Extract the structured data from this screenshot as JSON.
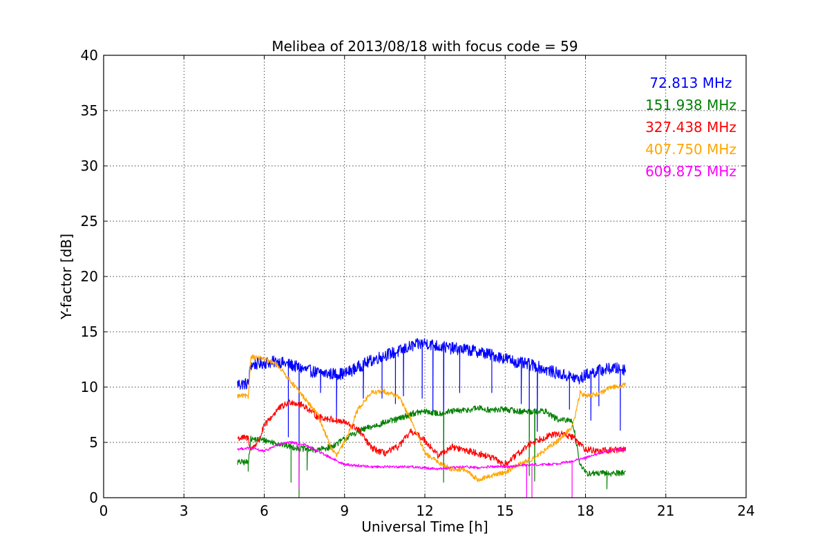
{
  "chart_data": {
    "type": "line",
    "title": "Melibea of 2013/08/18 with focus code = 59",
    "xlabel": "Universal Time [h]",
    "ylabel": "Y-factor [dB]",
    "xlim": [
      0,
      24
    ],
    "ylim": [
      0,
      40
    ],
    "xticks": [
      "0",
      "3",
      "6",
      "9",
      "12",
      "15",
      "18",
      "21",
      "24"
    ],
    "yticks": [
      "0",
      "5",
      "10",
      "15",
      "20",
      "25",
      "30",
      "35",
      "40"
    ],
    "grid": true,
    "legend_position": "top-right",
    "series": [
      {
        "name": "72.813 MHz",
        "color": "#0000ff",
        "x": [
          5.0,
          5.4,
          5.5,
          6.0,
          6.5,
          7.0,
          7.5,
          8.0,
          8.5,
          9.0,
          9.5,
          10.0,
          10.5,
          11.0,
          11.5,
          12.0,
          12.5,
          13.0,
          13.5,
          14.0,
          14.5,
          15.0,
          15.5,
          16.0,
          16.5,
          17.0,
          17.5,
          17.8,
          18.0,
          18.5,
          19.0,
          19.5
        ],
        "y": [
          10.3,
          10.3,
          12.0,
          12.2,
          12.3,
          12.0,
          11.6,
          11.3,
          11.2,
          11.2,
          11.8,
          12.4,
          12.9,
          13.2,
          13.7,
          14.0,
          13.7,
          13.5,
          13.4,
          13.2,
          12.9,
          12.6,
          12.2,
          12.0,
          11.6,
          11.2,
          10.9,
          10.7,
          11.1,
          11.5,
          11.7,
          11.6
        ],
        "dips": [
          [
            5.1,
            9.8
          ],
          [
            6.9,
            5.5
          ],
          [
            7.3,
            4.5
          ],
          [
            8.1,
            9.5
          ],
          [
            8.7,
            7.0
          ],
          [
            9.7,
            9.0
          ],
          [
            10.4,
            9.0
          ],
          [
            10.9,
            8.5
          ],
          [
            11.2,
            9.2
          ],
          [
            11.9,
            9.0
          ],
          [
            12.3,
            7.5
          ],
          [
            12.7,
            4.3
          ],
          [
            13.3,
            9.5
          ],
          [
            14.5,
            9.5
          ],
          [
            15.6,
            8.5
          ],
          [
            15.9,
            5.5
          ],
          [
            16.2,
            6.0
          ],
          [
            17.4,
            8.0
          ],
          [
            18.2,
            7.0
          ],
          [
            18.5,
            8.3
          ],
          [
            19.3,
            6.1
          ]
        ]
      },
      {
        "name": "151.938 MHz",
        "color": "#008000",
        "x": [
          5.0,
          5.4,
          5.5,
          6.0,
          6.5,
          7.0,
          7.5,
          8.0,
          8.5,
          9.0,
          9.5,
          10.0,
          10.5,
          11.0,
          11.5,
          12.0,
          12.5,
          13.0,
          13.5,
          14.0,
          14.5,
          15.0,
          15.5,
          16.0,
          16.5,
          17.0,
          17.5,
          17.6,
          17.8,
          18.0,
          18.5,
          19.0,
          19.5
        ],
        "y": [
          3.2,
          3.2,
          5.3,
          5.2,
          4.9,
          4.6,
          4.4,
          4.3,
          4.6,
          5.3,
          6.0,
          6.4,
          6.8,
          7.1,
          7.6,
          7.8,
          7.6,
          7.8,
          7.9,
          8.1,
          7.9,
          8.0,
          7.8,
          7.8,
          7.8,
          7.0,
          7.0,
          5.8,
          3.0,
          2.2,
          2.2,
          2.2,
          2.3
        ],
        "dips": [
          [
            5.4,
            2.4
          ],
          [
            7.0,
            1.4
          ],
          [
            7.3,
            0.0
          ],
          [
            7.6,
            2.5
          ],
          [
            12.7,
            1.4
          ],
          [
            15.9,
            2.0
          ],
          [
            16.1,
            1.5
          ],
          [
            18.8,
            0.8
          ]
        ]
      },
      {
        "name": "327.438 MHz",
        "color": "#ff0000",
        "x": [
          5.0,
          5.4,
          5.5,
          5.8,
          6.0,
          6.5,
          7.0,
          7.5,
          8.0,
          8.5,
          9.0,
          9.5,
          10.0,
          10.5,
          11.0,
          11.5,
          12.0,
          12.5,
          13.0,
          13.5,
          14.0,
          14.5,
          15.0,
          15.5,
          16.0,
          16.5,
          17.0,
          17.5,
          18.0,
          18.5,
          19.0,
          19.5
        ],
        "y": [
          5.4,
          5.4,
          4.3,
          5.2,
          6.5,
          8.0,
          8.7,
          8.3,
          7.3,
          7.1,
          6.8,
          6.2,
          4.5,
          4.0,
          4.6,
          6.0,
          5.2,
          3.8,
          4.6,
          4.3,
          4.0,
          3.6,
          3.0,
          4.0,
          5.0,
          5.5,
          5.8,
          5.5,
          4.4,
          4.2,
          4.3,
          4.4
        ],
        "dips": []
      },
      {
        "name": "407.750 MHz",
        "color": "#ffa500",
        "x": [
          5.0,
          5.3,
          5.4,
          5.5,
          6.0,
          6.5,
          7.0,
          7.5,
          8.0,
          8.5,
          8.7,
          9.0,
          9.5,
          10.0,
          10.5,
          11.0,
          11.5,
          12.0,
          12.5,
          13.0,
          13.5,
          14.0,
          14.5,
          15.0,
          15.5,
          16.0,
          16.5,
          17.0,
          17.5,
          17.6,
          17.8,
          18.0,
          18.5,
          19.0,
          19.5
        ],
        "y": [
          9.2,
          9.2,
          9.0,
          12.8,
          12.5,
          12.0,
          10.5,
          9.0,
          7.5,
          4.5,
          3.8,
          5.0,
          8.0,
          9.5,
          9.6,
          9.2,
          7.0,
          4.0,
          3.2,
          2.6,
          2.5,
          1.6,
          2.0,
          2.3,
          3.0,
          3.5,
          4.3,
          5.2,
          6.4,
          7.2,
          9.5,
          9.2,
          9.4,
          10.0,
          10.2
        ],
        "dips": []
      },
      {
        "name": "609.875 MHz",
        "color": "#ff00ff",
        "x": [
          5.0,
          5.5,
          6.0,
          6.5,
          7.0,
          7.5,
          8.0,
          8.5,
          9.0,
          9.5,
          10.0,
          10.5,
          11.0,
          11.5,
          12.0,
          12.5,
          13.0,
          13.5,
          14.0,
          14.5,
          15.0,
          15.5,
          16.0,
          16.5,
          17.0,
          17.5,
          18.0,
          18.5,
          19.0,
          19.5
        ],
        "y": [
          4.4,
          4.5,
          4.2,
          4.8,
          5.0,
          4.8,
          4.2,
          3.6,
          3.0,
          2.9,
          2.8,
          2.8,
          2.8,
          2.8,
          2.7,
          2.6,
          2.7,
          2.8,
          2.7,
          2.8,
          2.8,
          2.9,
          3.0,
          3.0,
          3.1,
          3.3,
          3.6,
          4.0,
          4.3,
          4.4
        ],
        "dips": [
          [
            7.3,
            0.8
          ],
          [
            15.8,
            0.0
          ],
          [
            16.0,
            0.0
          ],
          [
            17.5,
            0.0
          ]
        ]
      }
    ]
  }
}
